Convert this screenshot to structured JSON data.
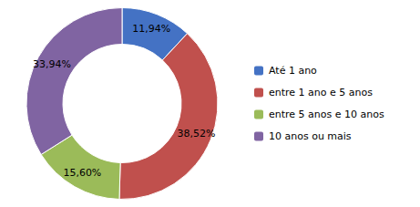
{
  "chart_data": {
    "type": "donut",
    "categories": [
      "Até 1 ano",
      "entre 1 ano e 5 anos",
      "entre 5 anos e 10 anos",
      "10 anos ou mais"
    ],
    "values": [
      11.94,
      38.52,
      15.6,
      33.94
    ],
    "value_labels": [
      "11,94%",
      "38,52%",
      "15,60%",
      "33,94%"
    ],
    "colors": [
      "#4472C4",
      "#C0504D",
      "#9BBB59",
      "#8064A2"
    ],
    "data_labels": true,
    "legend": "right"
  }
}
